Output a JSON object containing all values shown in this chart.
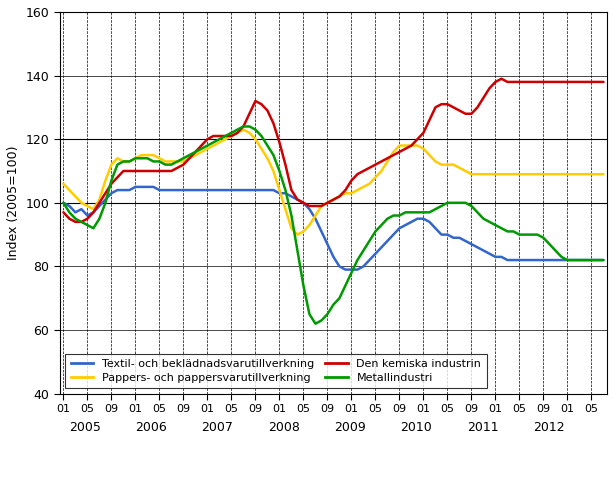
{
  "ylabel": "Index (2005=100)",
  "ylim": [
    40,
    160
  ],
  "yticks": [
    40,
    60,
    80,
    100,
    120,
    140,
    160
  ],
  "background_color": "#ffffff",
  "line_width": 1.8,
  "series": {
    "blue": {
      "label": "Textil- och beklädnadsvarutillverkning",
      "color": "#3366cc",
      "data": [
        100,
        99,
        97,
        98,
        96,
        97,
        99,
        101,
        103,
        104,
        104,
        104,
        105,
        105,
        105,
        105,
        104,
        104,
        104,
        104,
        104,
        104,
        104,
        104,
        104,
        104,
        104,
        104,
        104,
        104,
        104,
        104,
        104,
        104,
        104,
        104,
        103,
        103,
        102,
        101,
        100,
        98,
        95,
        91,
        87,
        83,
        80,
        79,
        79,
        79,
        80,
        82,
        84,
        86,
        88,
        90,
        92,
        93,
        94,
        95,
        95,
        94,
        92,
        90,
        90,
        89,
        89,
        88,
        87,
        86,
        85,
        84,
        83,
        83,
        82,
        82,
        82,
        82,
        82,
        82,
        82,
        82,
        82,
        82,
        82,
        82,
        82,
        82,
        82,
        82,
        82
      ]
    },
    "yellow": {
      "label": "Pappers- och pappersvarutillverkning",
      "color": "#ffcc00",
      "data": [
        106,
        104,
        102,
        100,
        99,
        98,
        101,
        107,
        112,
        114,
        113,
        113,
        114,
        115,
        115,
        115,
        114,
        113,
        113,
        113,
        113,
        114,
        115,
        116,
        117,
        118,
        119,
        120,
        121,
        122,
        123,
        122,
        120,
        117,
        114,
        110,
        104,
        98,
        92,
        90,
        91,
        93,
        96,
        99,
        100,
        101,
        102,
        103,
        103,
        104,
        105,
        106,
        108,
        110,
        113,
        116,
        118,
        118,
        118,
        118,
        117,
        115,
        113,
        112,
        112,
        112,
        111,
        110,
        109,
        109,
        109,
        109,
        109,
        109,
        109,
        109,
        109,
        109,
        109,
        109,
        109,
        109,
        109,
        109,
        109,
        109,
        109,
        109,
        109,
        109,
        109
      ]
    },
    "red": {
      "label": "Den kemiska industrin",
      "color": "#cc0000",
      "data": [
        97,
        95,
        94,
        94,
        95,
        97,
        100,
        103,
        106,
        108,
        110,
        110,
        110,
        110,
        110,
        110,
        110,
        110,
        110,
        111,
        112,
        114,
        116,
        118,
        120,
        121,
        121,
        121,
        121,
        122,
        124,
        128,
        132,
        131,
        129,
        125,
        119,
        112,
        104,
        101,
        100,
        99,
        99,
        99,
        100,
        101,
        102,
        104,
        107,
        109,
        110,
        111,
        112,
        113,
        114,
        115,
        116,
        117,
        118,
        120,
        122,
        126,
        130,
        131,
        131,
        130,
        129,
        128,
        128,
        130,
        133,
        136,
        138,
        139,
        138,
        138,
        138,
        138,
        138,
        138,
        138,
        138,
        138,
        138,
        138,
        138,
        138,
        138,
        138,
        138,
        138
      ]
    },
    "green": {
      "label": "Metallindustri",
      "color": "#009900",
      "data": [
        100,
        97,
        95,
        94,
        93,
        92,
        95,
        100,
        107,
        112,
        113,
        113,
        114,
        114,
        114,
        113,
        113,
        112,
        112,
        113,
        114,
        115,
        116,
        117,
        118,
        119,
        120,
        121,
        122,
        123,
        124,
        124,
        123,
        121,
        118,
        115,
        110,
        104,
        96,
        85,
        74,
        65,
        62,
        63,
        65,
        68,
        70,
        74,
        78,
        82,
        85,
        88,
        91,
        93,
        95,
        96,
        96,
        97,
        97,
        97,
        97,
        97,
        98,
        99,
        100,
        100,
        100,
        100,
        99,
        97,
        95,
        94,
        93,
        92,
        91,
        91,
        90,
        90,
        90,
        90,
        89,
        87,
        85,
        83,
        82,
        82,
        82,
        82,
        82,
        82,
        82
      ]
    }
  },
  "major_tick_months": [
    1,
    5,
    9
  ],
  "year_labels": [
    2005,
    2006,
    2007,
    2008,
    2009,
    2010,
    2011,
    2012
  ]
}
